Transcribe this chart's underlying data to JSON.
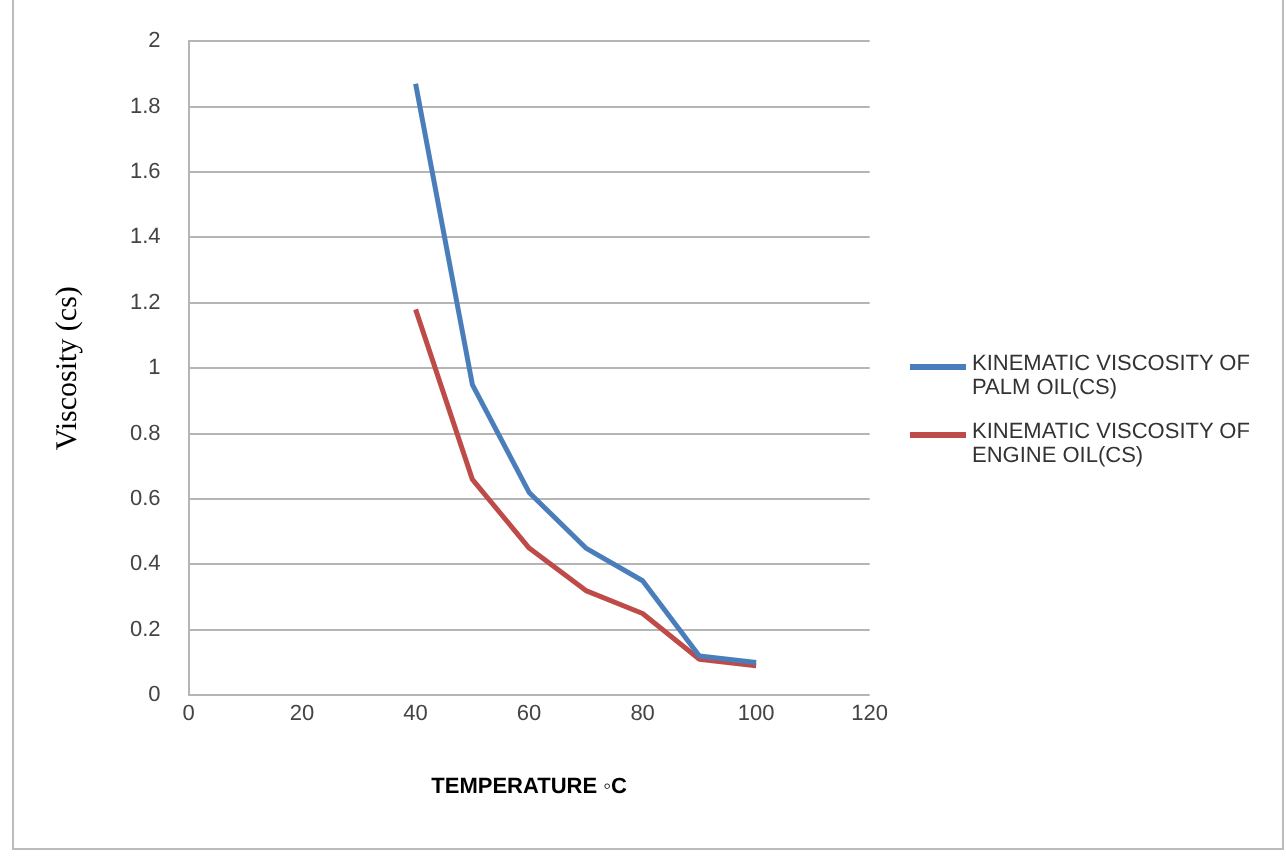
{
  "chart_data": {
    "type": "line",
    "xlabel": "TEMPERATURE ◦C",
    "ylabel": "Viscosity (cs)",
    "x": [
      40,
      50,
      60,
      70,
      80,
      90,
      100
    ],
    "series": [
      {
        "name": "KINEMATIC VISCOSITY OF PALM OIL(CS)",
        "color": "#4a7ebb",
        "values": [
          1.87,
          0.95,
          0.62,
          0.45,
          0.35,
          0.12,
          0.1
        ]
      },
      {
        "name": "KINEMATIC VISCOSITY OF ENGINE OIL(CS)",
        "color": "#be4b48",
        "values": [
          1.18,
          0.66,
          0.45,
          0.32,
          0.25,
          0.11,
          0.09
        ]
      }
    ],
    "xlim": [
      0,
      120
    ],
    "xticks": [
      0,
      20,
      40,
      60,
      80,
      100,
      120
    ],
    "ylim": [
      0,
      2
    ],
    "yticks": [
      0,
      0.2,
      0.4,
      0.6,
      0.8,
      1,
      1.2,
      1.4,
      1.6,
      1.8,
      2
    ],
    "grid": "y",
    "legend": "right",
    "marker": "none",
    "line_style": "solid"
  }
}
